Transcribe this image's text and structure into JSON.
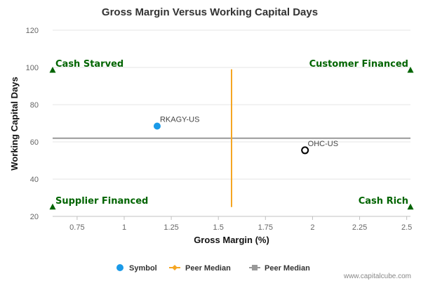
{
  "chart_data": {
    "type": "scatter",
    "title": "Gross Margin Versus Working Capital Days",
    "xlabel": "Gross Margin (%)",
    "ylabel": "Working Capital Days",
    "xlim": [
      0.62,
      2.52
    ],
    "ylim": [
      20,
      120
    ],
    "x_ticks": [
      0.75,
      1,
      1.25,
      1.5,
      1.75,
      2,
      2.25,
      2.5
    ],
    "x_tick_labels": [
      "0.75",
      "1",
      "1.25",
      "1.5",
      "1.75",
      "2",
      "2.25",
      "2.5"
    ],
    "y_ticks": [
      20,
      40,
      60,
      80,
      100,
      120
    ],
    "y_tick_labels": [
      "20",
      "40",
      "60",
      "80",
      "100",
      "120"
    ],
    "grid": "horizontal",
    "points": [
      {
        "label": "RKAGY-US",
        "x": 1.175,
        "y": 68.5,
        "kind": "symbol",
        "color": "#1a9ae8"
      },
      {
        "label": "OHC-US",
        "x": 1.96,
        "y": 55.5,
        "kind": "peer",
        "color": "#000000"
      }
    ],
    "peer_median_x": {
      "value": 1.57,
      "y_range": [
        25,
        99
      ],
      "color": "#f5a623"
    },
    "peer_median_y": {
      "value": 62,
      "color": "#999999"
    },
    "quadrants": [
      {
        "label": "Cash Starved",
        "position": "top-left",
        "marker_x": 0.62,
        "marker_y": 98.5
      },
      {
        "label": "Customer Financed",
        "position": "top-right",
        "marker_x": 2.52,
        "marker_y": 98.5
      },
      {
        "label": "Supplier Financed",
        "position": "bottom-left",
        "marker_x": 0.62,
        "marker_y": 25
      },
      {
        "label": "Cash Rich",
        "position": "bottom-right",
        "marker_x": 2.52,
        "marker_y": 25
      }
    ],
    "legend": {
      "placement": "bottom",
      "items": [
        {
          "label": "Symbol",
          "kind": "dot",
          "color": "#1a9ae8"
        },
        {
          "label": "Peer Median",
          "kind": "line-diamond",
          "color": "#f5a623"
        },
        {
          "label": "Peer Median",
          "kind": "line-square",
          "color": "#999999"
        }
      ]
    }
  },
  "credit": "www.capitalcube.com"
}
